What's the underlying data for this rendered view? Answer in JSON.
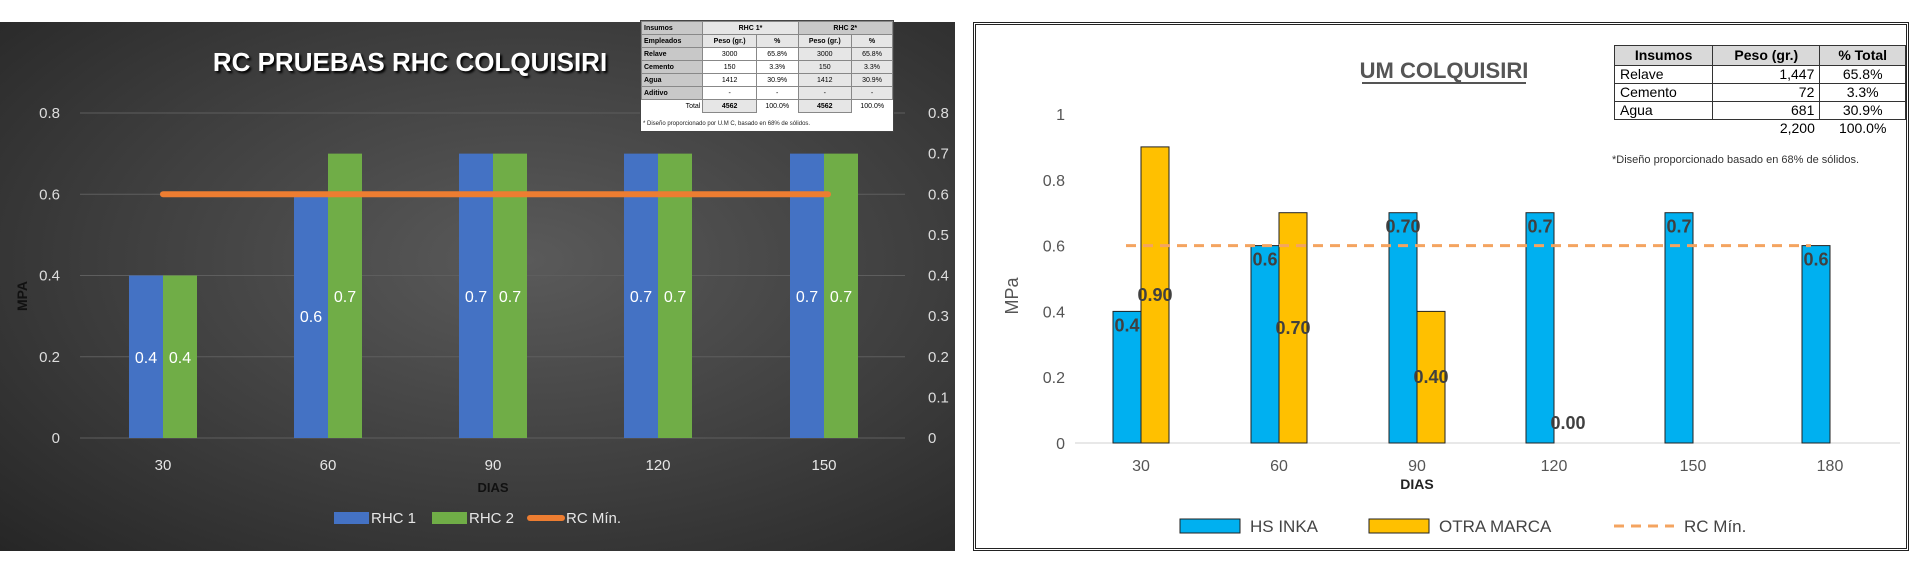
{
  "chart_data": [
    {
      "type": "bar",
      "title": "RC PRUEBAS RHC COLQUISIRI",
      "xlabel": "DIAS",
      "ylabel": "MPA",
      "categories": [
        "30",
        "60",
        "90",
        "120",
        "150"
      ],
      "ylim": [
        0,
        0.8
      ],
      "yticks": [
        "0",
        "0.2",
        "0.4",
        "0.6",
        "0.8"
      ],
      "y2ticks": [
        "0",
        "0.1",
        "0.2",
        "0.3",
        "0.4",
        "0.5",
        "0.6",
        "0.7",
        "0.8"
      ],
      "series": [
        {
          "name": "RHC 1",
          "type": "bar",
          "color": "#4472c4",
          "values": [
            0.4,
            0.6,
            0.7,
            0.7,
            0.7
          ],
          "labels": [
            "0.4",
            "0.6",
            "0.7",
            "0.7",
            "0.7"
          ]
        },
        {
          "name": "RHC 2",
          "type": "bar",
          "color": "#70ad47",
          "values": [
            0.4,
            0.7,
            0.7,
            0.7,
            0.7
          ],
          "labels": [
            "0.4",
            "0.7",
            "0.7",
            "0.7",
            "0.7"
          ]
        },
        {
          "name": "RC Mín.",
          "type": "line",
          "color": "#ed7d31",
          "value": 0.6
        }
      ],
      "legend": "bottom",
      "table": {
        "header1": [
          "Insumos",
          "RHC 1*",
          "RHC 2*"
        ],
        "header2": [
          "Empleados",
          "Peso (gr.)",
          "%",
          "Peso (gr.)",
          "%"
        ],
        "rows": [
          [
            "Relave",
            "3000",
            "65.8%",
            "3000",
            "65.8%"
          ],
          [
            "Cemento",
            "150",
            "3.3%",
            "150",
            "3.3%"
          ],
          [
            "Agua",
            "1412",
            "30.9%",
            "1412",
            "30.9%"
          ],
          [
            "Aditivo",
            "-",
            "-",
            "-",
            "-"
          ]
        ],
        "total": [
          "Total",
          "4562",
          "100.0%",
          "4562",
          "100.0%"
        ],
        "note": "* Diseño proporcionado por U.M C, basado en 68% de sólidos."
      }
    },
    {
      "type": "bar",
      "title": "UM COLQUISIRI",
      "xlabel": "DIAS",
      "ylabel": "MPa",
      "categories": [
        "30",
        "60",
        "90",
        "120",
        "150",
        "180"
      ],
      "ylim": [
        0,
        1
      ],
      "yticks": [
        "0",
        "0.2",
        "0.4",
        "0.6",
        "0.8",
        "1"
      ],
      "series": [
        {
          "name": "HS INKA",
          "type": "bar",
          "color": "#00b0f0",
          "values": [
            0.4,
            0.6,
            0.7,
            0.7,
            0.7,
            0.6
          ],
          "labels": [
            "0.4",
            "0.6",
            "0.70",
            "0.7",
            "0.7",
            "0.6"
          ]
        },
        {
          "name": "OTRA MARCA",
          "type": "bar",
          "color": "#ffc000",
          "values": [
            0.9,
            0.7,
            0.4,
            0,
            null,
            null
          ],
          "labels": [
            "0.90",
            "0.70",
            "0.40",
            "0.00",
            null,
            null
          ]
        },
        {
          "name": "RC Mín.",
          "type": "line",
          "color": "#f4a460",
          "value": 0.6
        }
      ],
      "legend": "bottom",
      "table": {
        "headers": [
          "Insumos",
          "Peso (gr.)",
          "% Total"
        ],
        "rows": [
          [
            "Relave",
            "1,447",
            "65.8%"
          ],
          [
            "Cemento",
            "72",
            "3.3%"
          ],
          [
            "Agua",
            "681",
            "30.9%"
          ]
        ],
        "total": [
          "2,200",
          "100.0%"
        ],
        "note": "*Diseño proporcionado basado en 68% de sólidos."
      }
    }
  ]
}
